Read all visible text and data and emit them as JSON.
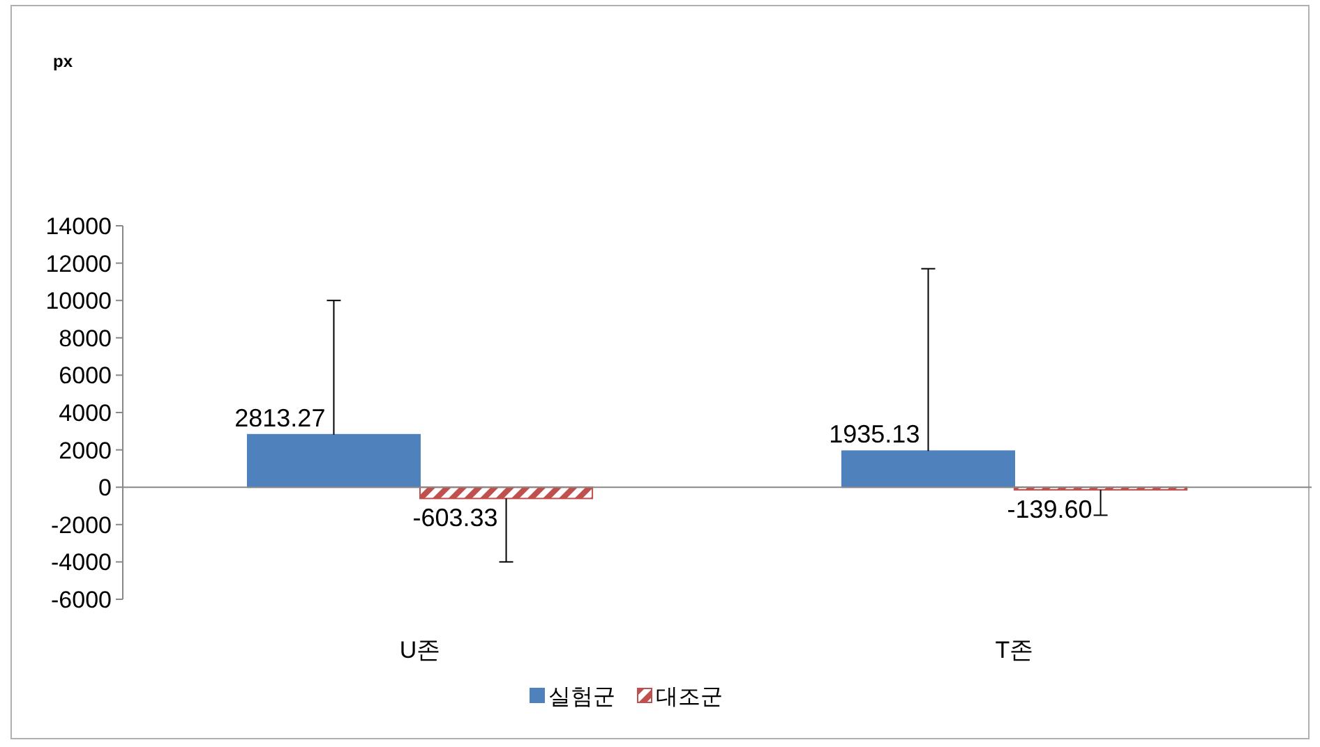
{
  "chart_data": {
    "type": "bar",
    "annotations": [
      "px"
    ],
    "categories": [
      "U존",
      "T존"
    ],
    "series": [
      {
        "name": "실험군",
        "color": "#4f81bd",
        "values": [
          2813.27,
          1935.13
        ],
        "errors": [
          [
            2813.27,
            10000
          ],
          [
            1935.13,
            11700
          ]
        ],
        "value_labels": [
          "2813.27",
          "1935.13"
        ]
      },
      {
        "name": "대조군",
        "color": "#c0504d",
        "values": [
          -603.33,
          -139.6
        ],
        "errors": [
          [
            -4000,
            -603.33
          ],
          [
            -1500,
            -139.6
          ]
        ],
        "value_labels": [
          "-603.33",
          "-139.60"
        ]
      }
    ],
    "ylim": [
      -6000,
      14000
    ],
    "yticks": [
      -6000,
      -4000,
      -2000,
      0,
      2000,
      4000,
      6000,
      8000,
      10000,
      12000,
      14000
    ],
    "legend": "bottom"
  }
}
